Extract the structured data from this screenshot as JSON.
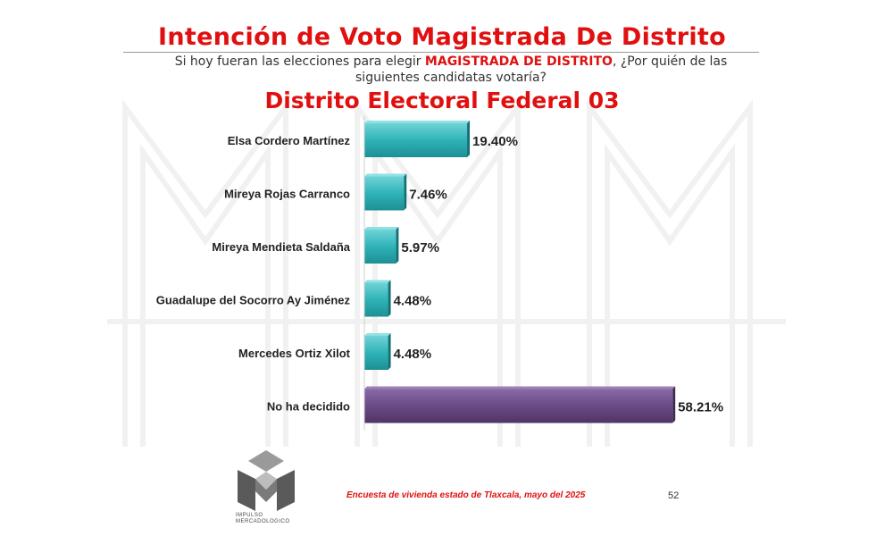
{
  "header": {
    "title": "Intención de Voto Magistrada De Distrito",
    "question_pre": "Si hoy fueran las elecciones para elegir ",
    "question_highlight": "MAGISTRADA DE DISTRITO",
    "question_post": ", ¿Por quién de las siguientes candidatas votaría?",
    "subtitle": "Distrito Electoral Federal 03"
  },
  "chart_data": {
    "type": "bar",
    "orientation": "horizontal",
    "categories": [
      "Elsa Cordero Martínez",
      "Mireya Rojas Carranco",
      "Mireya Mendieta Saldaña",
      "Guadalupe del Socorro Ay Jiménez",
      "Mercedes Ortiz Xilot",
      "No ha decidido"
    ],
    "values": [
      19.4,
      7.46,
      5.97,
      4.48,
      4.48,
      58.21
    ],
    "labels": [
      "19.40%",
      "7.46%",
      "5.97%",
      "4.48%",
      "4.48%",
      "58.21%"
    ],
    "colors": [
      "#2fb3b8",
      "#2fb3b8",
      "#2fb3b8",
      "#2fb3b8",
      "#2fb3b8",
      "#6a4a86"
    ],
    "xlim": [
      0,
      60
    ],
    "grid": false,
    "legend": "none"
  },
  "footer": {
    "source": "Encuesta de vivienda estado de Tlaxcala, mayo  del 2025",
    "page_number": "52"
  },
  "logo": {
    "line1": "IMPULSO",
    "line2": "MERCADOLOGICO",
    "icon": "impulso-logo-icon"
  }
}
